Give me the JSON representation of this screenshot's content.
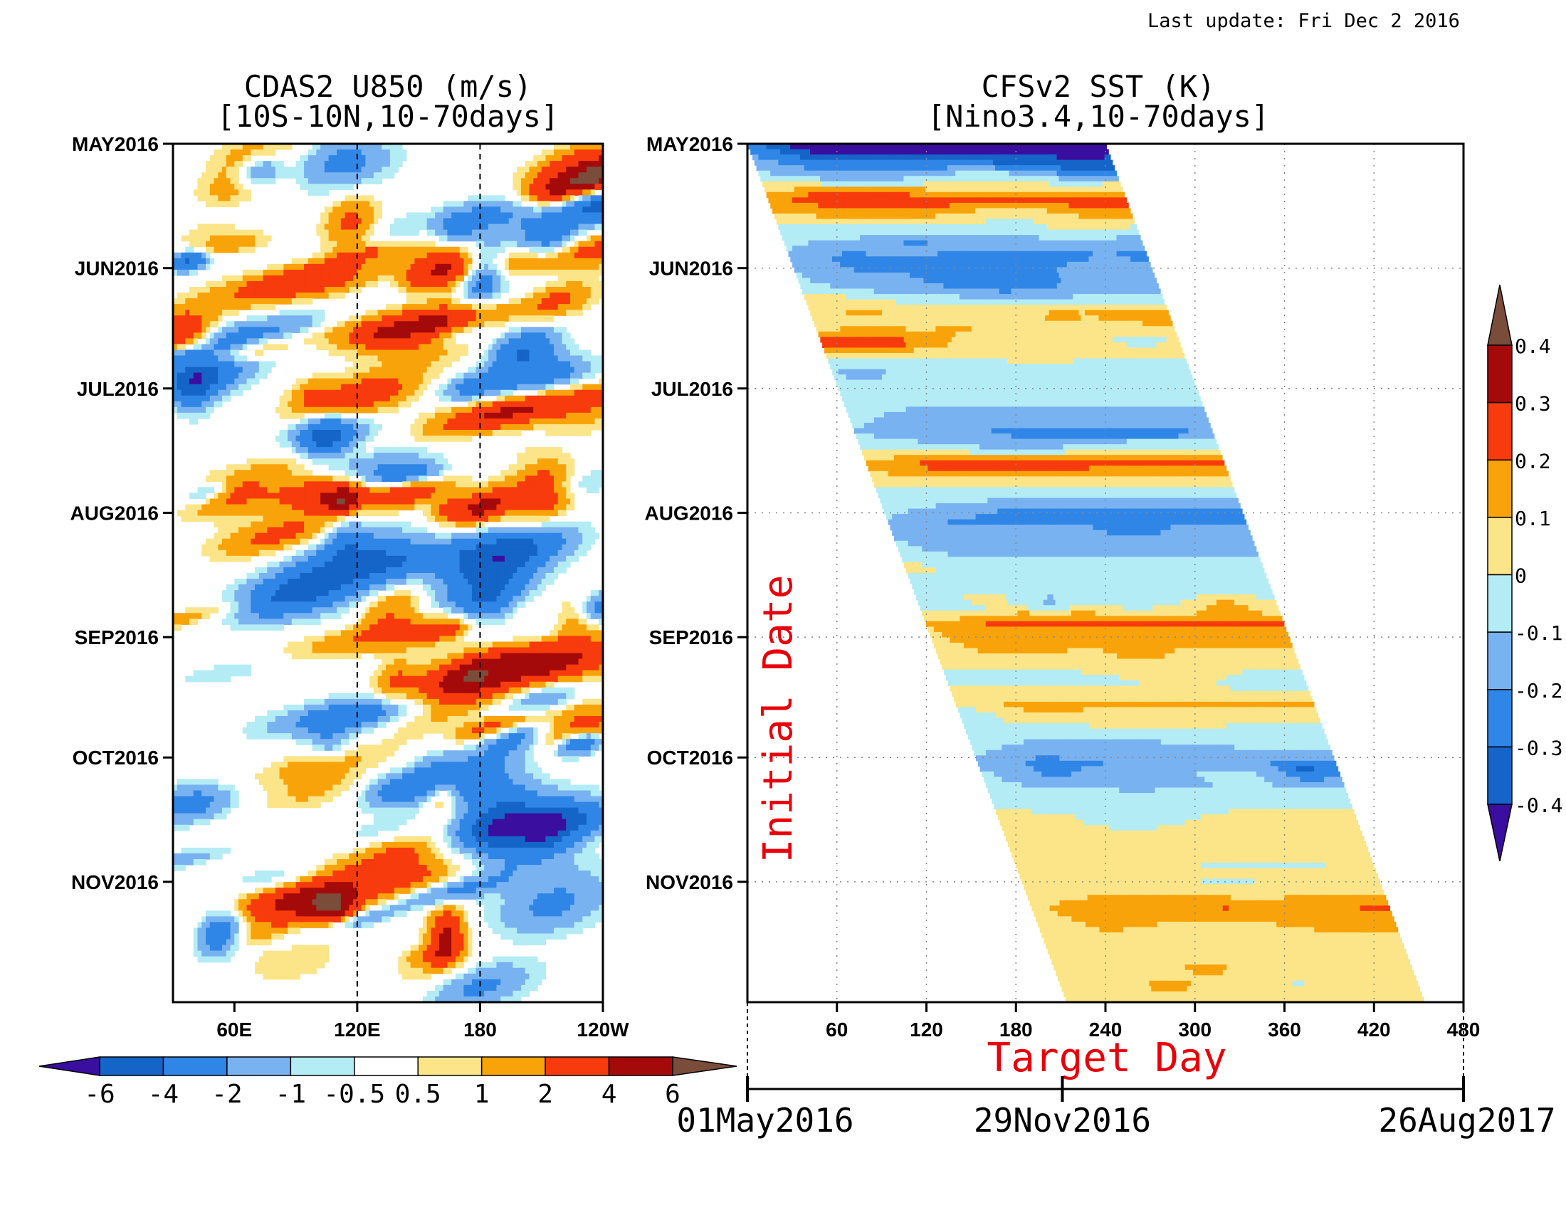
{
  "header": {
    "last_update": "Last update: Fri Dec 2 2016"
  },
  "chart_data": [
    {
      "type": "heatmap",
      "title": "CDAS2 U850 (m/s)",
      "subtitle": "[10S-10N,10-70days]",
      "xlabel": "",
      "ylabel": "",
      "x_ticks": [
        "60E",
        "120E",
        "180",
        "120W"
      ],
      "x_tick_values": [
        60,
        120,
        180,
        240
      ],
      "xlim": [
        30,
        240
      ],
      "y_ticks": [
        "MAY2016",
        "JUN2016",
        "JUL2016",
        "AUG2016",
        "SEP2016",
        "OCT2016",
        "NOV2016"
      ],
      "y_tick_values": [
        0,
        31,
        61,
        92,
        123,
        153,
        184
      ],
      "ylim": [
        0,
        214
      ],
      "reference_lines_x": [
        120,
        180
      ],
      "colorbar": {
        "orientation": "horizontal",
        "levels": [
          -6,
          -4,
          -2,
          -1,
          -0.5,
          0.5,
          1,
          2,
          4,
          6
        ],
        "labels": [
          "-6",
          "-4",
          "-2",
          "-1",
          "-0.5",
          "0.5",
          "1",
          "2",
          "4",
          "6"
        ],
        "colors": [
          "#3a0e9e",
          "#1565c8",
          "#2f86e6",
          "#79b2f0",
          "#b4ecf5",
          "#ffffff",
          "#fbe588",
          "#f9a30a",
          "#f73b0c",
          "#a50a0a",
          "#7a4c3a"
        ]
      }
    },
    {
      "type": "heatmap",
      "title": "CFSv2 SST (K)",
      "subtitle": "[Nino3.4,10-70days]",
      "xlabel": "Target Day",
      "ylabel": "Initial Date",
      "x_ticks": [
        "60",
        "120",
        "180",
        "240",
        "300",
        "360",
        "420",
        "480"
      ],
      "x_tick_values": [
        60,
        120,
        180,
        240,
        300,
        360,
        420,
        480
      ],
      "xlim": [
        0,
        480
      ],
      "y_ticks": [
        "MAY2016",
        "JUN2016",
        "JUL2016",
        "AUG2016",
        "SEP2016",
        "OCT2016",
        "NOV2016"
      ],
      "y_tick_values": [
        0,
        31,
        61,
        92,
        123,
        153,
        184
      ],
      "ylim": [
        0,
        214
      ],
      "date_axis": {
        "labels": [
          "01May2016",
          "29Nov2016",
          "26Aug2017"
        ],
        "values": [
          0,
          212,
          482
        ]
      },
      "colorbar": {
        "orientation": "vertical",
        "levels": [
          -0.4,
          -0.3,
          -0.2,
          -0.1,
          0,
          0.1,
          0.2,
          0.3,
          0.4
        ],
        "labels": [
          "-0.4",
          "-0.3",
          "-0.2",
          "-0.1",
          "0",
          "0.1",
          "0.2",
          "0.3",
          "0.4"
        ],
        "colors": [
          "#3a0e9e",
          "#1565c8",
          "#2f86e6",
          "#79b2f0",
          "#b4ecf5",
          "#fbe588",
          "#f9a30a",
          "#f73b0c",
          "#a50a0a",
          "#7a4c3a"
        ]
      }
    }
  ]
}
